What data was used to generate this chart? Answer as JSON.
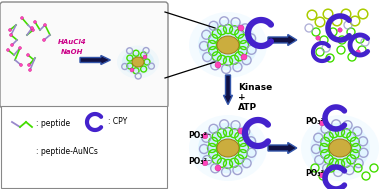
{
  "bg_color": "#ffffff",
  "green_circle_color": "#44dd00",
  "light_purple": "#9999cc",
  "pink_color": "#ff44bb",
  "gold_color": "#ccaa33",
  "blue_glow": "#99ddff",
  "magenta_text": "#cc0088",
  "cpy_color": "#4422cc",
  "arrow_color": "#111144",
  "HAuCl4_label": "HAuCl4",
  "NaOH_label": "NaOH",
  "kinase_label": "Kinase",
  "plus_label": "+",
  "ATP_label": "ATP",
  "peptide_label": ": peptide",
  "CPY_label": ": CPY",
  "AuNCs_label": ": peptide-AuNCs",
  "PO3_label": "PO₃²⁻"
}
